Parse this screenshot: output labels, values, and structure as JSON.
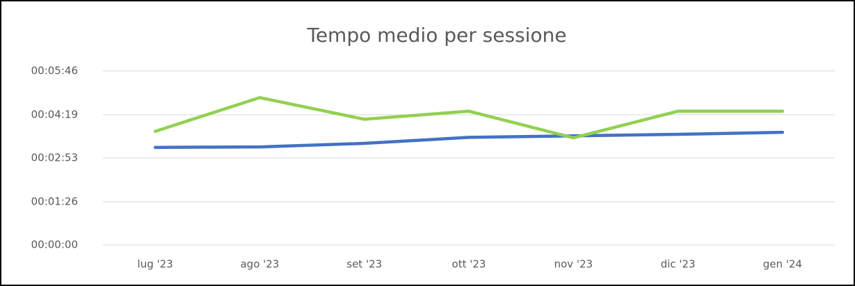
{
  "chart_data": {
    "type": "line",
    "title": "Tempo medio per sessione",
    "categories": [
      "lug '23",
      "ago '23",
      "set '23",
      "ott '23",
      "nov '23",
      "dic '23",
      "gen '24"
    ],
    "series": [
      {
        "color": "#4472c4",
        "values": [
          194,
          195,
          202,
          214,
          217,
          220,
          224
        ]
      },
      {
        "color": "#92d050",
        "values": [
          226,
          293,
          250,
          266,
          213,
          266,
          266
        ]
      }
    ],
    "ylim": [
      0,
      346
    ],
    "yticks": [
      {
        "value": 0,
        "label": "00:00:00"
      },
      {
        "value": 86,
        "label": "00:01:26"
      },
      {
        "value": 173,
        "label": "00:02:53"
      },
      {
        "value": 259,
        "label": "00:04:19"
      },
      {
        "value": 346,
        "label": "00:05:46"
      }
    ],
    "grid": true
  }
}
